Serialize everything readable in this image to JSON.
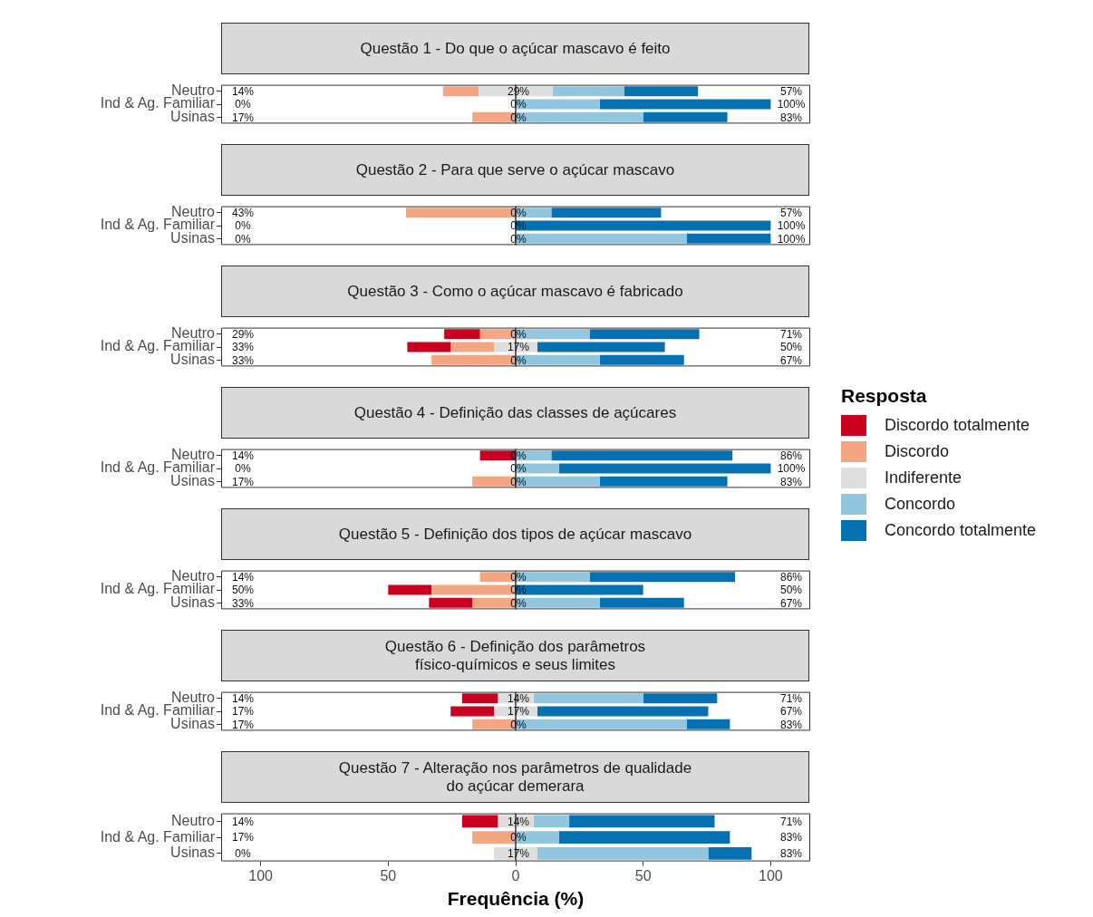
{
  "chart_data": [
    {
      "type": "bar",
      "orientation": "horizontal",
      "title": "Questão 1 - Do que o açúcar mascavo é feito",
      "categories": [
        "Neutro",
        "Ind & Ag. Familiar",
        "Usinas"
      ],
      "xlim": [
        -115.5,
        115.5
      ],
      "tick_labels": "y",
      "grid": false,
      "ref_lines": [
        {
          "axis": "x",
          "value": 0
        }
      ],
      "series": [
        {
          "color": "#ca0020",
          "values": [
            0,
            0,
            0
          ]
        },
        {
          "color": "#f4a582",
          "values": [
            14,
            0,
            17
          ],
          "base": [
            -28.5,
            null,
            -17
          ]
        },
        {
          "color": "#dedede",
          "values": [
            29,
            0,
            0
          ],
          "base": [
            -14.5,
            null,
            null
          ],
          "value_labels": [
            "29%",
            "0%",
            "0%"
          ]
        },
        {
          "color": "#92c5de",
          "values": [
            28,
            33,
            50
          ],
          "base": [
            14.5,
            0,
            0
          ]
        },
        {
          "color": "#0571b0",
          "values": [
            29,
            67,
            33
          ],
          "base": [
            42.5,
            33,
            50
          ]
        }
      ],
      "annotations": [
        "14%",
        "57%",
        "0%",
        "100%",
        "17%",
        "83%"
      ]
    },
    {
      "type": "bar",
      "orientation": "horizontal",
      "title": "Questão 2 - Para que serve o açúcar mascavo",
      "categories": [
        "Neutro",
        "Ind & Ag. Familiar",
        "Usinas"
      ],
      "xlim": [
        -115.5,
        115.5
      ],
      "tick_labels": "y",
      "grid": false,
      "ref_lines": [
        {
          "axis": "x",
          "value": 0
        }
      ],
      "series": [
        {
          "color": "#ca0020",
          "values": [
            0,
            0,
            0
          ]
        },
        {
          "color": "#f4a582",
          "values": [
            43,
            0,
            0
          ],
          "base": [
            -43,
            null,
            null
          ]
        },
        {
          "color": "#dedede",
          "values": [
            0,
            0,
            0
          ],
          "value_labels": [
            "0%",
            "0%",
            "0%"
          ]
        },
        {
          "color": "#92c5de",
          "values": [
            14,
            0,
            67
          ],
          "base": [
            0,
            null,
            0
          ]
        },
        {
          "color": "#0571b0",
          "values": [
            43,
            100,
            33
          ],
          "base": [
            14,
            0,
            67
          ]
        }
      ],
      "annotations": [
        "43%",
        "57%",
        "0%",
        "100%",
        "0%",
        "100%"
      ]
    },
    {
      "type": "bar",
      "orientation": "horizontal",
      "title": "Questão 3 - Como o açúcar mascavo é fabricado",
      "categories": [
        "Neutro",
        "Ind & Ag. Familiar",
        "Usinas"
      ],
      "xlim": [
        -115.5,
        115.5
      ],
      "tick_labels": "y",
      "grid": false,
      "ref_lines": [
        {
          "axis": "x",
          "value": 0
        }
      ],
      "series": [
        {
          "color": "#ca0020",
          "values": [
            14,
            17,
            0
          ],
          "base": [
            -28,
            -42.5,
            null
          ]
        },
        {
          "color": "#f4a582",
          "values": [
            14,
            17,
            33
          ],
          "base": [
            -14,
            -25.5,
            -33
          ]
        },
        {
          "color": "#dedede",
          "values": [
            0,
            17,
            0
          ],
          "base": [
            null,
            -8.5,
            null
          ],
          "value_labels": [
            "0%",
            "17%",
            "0%"
          ]
        },
        {
          "color": "#92c5de",
          "values": [
            29,
            0,
            33
          ],
          "base": [
            0,
            null,
            0
          ]
        },
        {
          "color": "#0571b0",
          "values": [
            43,
            50,
            33
          ],
          "base": [
            29,
            8.5,
            33
          ]
        }
      ],
      "annotations": [
        "29%",
        "71%",
        "33%",
        "50%",
        "33%",
        "67%"
      ]
    },
    {
      "type": "bar",
      "orientation": "horizontal",
      "title": "Questão 4 - Definição das classes de açúcares",
      "categories": [
        "Neutro",
        "Ind & Ag. Familiar",
        "Usinas"
      ],
      "xlim": [
        -115.5,
        115.5
      ],
      "tick_labels": "y",
      "grid": false,
      "ref_lines": [
        {
          "axis": "x",
          "value": 0
        }
      ],
      "legend": "right",
      "legend_title": "Resposta",
      "series": [
        {
          "name": "Discordo totalmente",
          "color": "#ca0020",
          "values": [
            14,
            0,
            0
          ],
          "base": [
            -14,
            null,
            null
          ]
        },
        {
          "name": "Discordo",
          "color": "#f4a582",
          "values": [
            0,
            0,
            17
          ],
          "base": [
            null,
            null,
            -17
          ]
        },
        {
          "name": "Indiferente",
          "color": "#dedede",
          "values": [
            0,
            0,
            0
          ],
          "value_labels": [
            "0%",
            "0%",
            "0%"
          ]
        },
        {
          "name": "Concordo",
          "color": "#92c5de",
          "values": [
            14,
            17,
            33
          ],
          "base": [
            0,
            0,
            0
          ]
        },
        {
          "name": "Concordo totalmente",
          "color": "#0571b0",
          "values": [
            71,
            83,
            50
          ],
          "base": [
            14,
            17,
            33
          ]
        }
      ],
      "annotations": [
        "14%",
        "86%",
        "0%",
        "100%",
        "17%",
        "83%"
      ]
    },
    {
      "type": "bar",
      "orientation": "horizontal",
      "title": "Questão 5 - Definição dos tipos de açúcar mascavo",
      "categories": [
        "Neutro",
        "Ind & Ag. Familiar",
        "Usinas"
      ],
      "xlim": [
        -115.5,
        115.5
      ],
      "tick_labels": "y",
      "grid": false,
      "ref_lines": [
        {
          "axis": "x",
          "value": 0
        }
      ],
      "series": [
        {
          "color": "#ca0020",
          "values": [
            0,
            17,
            17
          ],
          "base": [
            null,
            -50,
            -34
          ]
        },
        {
          "color": "#f4a582",
          "values": [
            14,
            33,
            17
          ],
          "base": [
            -14,
            -33,
            -17
          ]
        },
        {
          "color": "#dedede",
          "values": [
            0,
            0,
            0
          ],
          "value_labels": [
            "0%",
            "0%",
            "0%"
          ]
        },
        {
          "color": "#92c5de",
          "values": [
            29,
            0,
            33
          ],
          "base": [
            0,
            null,
            0
          ]
        },
        {
          "color": "#0571b0",
          "values": [
            57,
            50,
            33
          ],
          "base": [
            29,
            0,
            33
          ]
        }
      ],
      "annotations": [
        "14%",
        "86%",
        "50%",
        "50%",
        "33%",
        "67%"
      ]
    },
    {
      "type": "bar",
      "orientation": "horizontal",
      "title": "Questão 6 - Definição dos parâmetros\nfísico-químicos e seus limites",
      "categories": [
        "Neutro",
        "Ind & Ag. Familiar",
        "Usinas"
      ],
      "xlim": [
        -115.5,
        115.5
      ],
      "tick_labels": "y",
      "grid": false,
      "ref_lines": [
        {
          "axis": "x",
          "value": 0
        }
      ],
      "series": [
        {
          "color": "#ca0020",
          "values": [
            14,
            17,
            0
          ],
          "base": [
            -21,
            -25.5,
            null
          ]
        },
        {
          "color": "#f4a582",
          "values": [
            0,
            0,
            17
          ],
          "base": [
            null,
            null,
            -17
          ]
        },
        {
          "color": "#dedede",
          "values": [
            14,
            17,
            0
          ],
          "base": [
            -7,
            -8.5,
            null
          ],
          "value_labels": [
            "14%",
            "17%",
            "0%"
          ]
        },
        {
          "color": "#92c5de",
          "values": [
            43,
            0,
            67
          ],
          "base": [
            7,
            null,
            0
          ]
        },
        {
          "color": "#0571b0",
          "values": [
            29,
            67,
            17
          ],
          "base": [
            50,
            8.5,
            67
          ]
        }
      ],
      "annotations": [
        "14%",
        "71%",
        "17%",
        "67%",
        "17%",
        "83%"
      ]
    },
    {
      "type": "bar",
      "orientation": "horizontal",
      "title": "Questão 7 - Alteração nos parâmetros de qualidade\ndo açúcar demerara",
      "xlabel": "Frequência (%)",
      "categories": [
        "Neutro",
        "Ind & Ag. Familiar",
        "Usinas"
      ],
      "xlim": [
        -115.5,
        115.5
      ],
      "xticks": [
        {
          "value": -100,
          "label": "100"
        },
        {
          "value": -50,
          "label": "50"
        },
        0,
        50,
        100
      ],
      "grid": false,
      "ref_lines": [
        {
          "axis": "x",
          "value": 0
        }
      ],
      "series": [
        {
          "color": "#ca0020",
          "values": [
            14,
            0,
            0
          ],
          "base": [
            -21,
            null,
            null
          ]
        },
        {
          "color": "#f4a582",
          "values": [
            0,
            17,
            0
          ],
          "base": [
            null,
            -17,
            null
          ]
        },
        {
          "color": "#dedede",
          "values": [
            14,
            0,
            17
          ],
          "base": [
            -7,
            null,
            -8.5
          ],
          "value_labels": [
            "14%",
            "0%",
            "17%"
          ]
        },
        {
          "color": "#92c5de",
          "values": [
            14,
            17,
            67
          ],
          "base": [
            7,
            0,
            8.5
          ]
        },
        {
          "color": "#0571b0",
          "values": [
            57,
            67,
            17
          ],
          "base": [
            21,
            17,
            75.5
          ]
        }
      ],
      "annotations": [
        "14%",
        "71%",
        "17%",
        "83%",
        "0%",
        "83%"
      ]
    }
  ]
}
